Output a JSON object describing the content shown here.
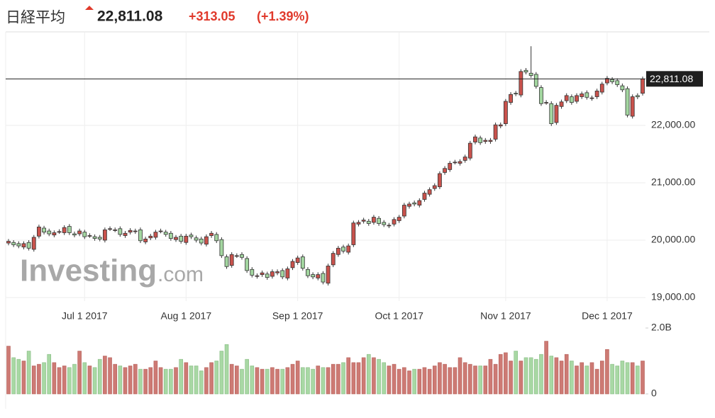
{
  "header": {
    "name": "日経平均",
    "price": "22,811.08",
    "change": "+313.05",
    "change_percent": "(+1.39%)"
  },
  "watermark": [
    "Investing",
    ".com"
  ],
  "chart_data": {
    "type": "candlestick",
    "up_color": "#c9524c",
    "down_color": "#a3d6a0",
    "x": [
      "2017-06-12",
      "2017-06-13",
      "2017-06-14",
      "2017-06-15",
      "2017-06-16",
      "2017-06-19",
      "2017-06-20",
      "2017-06-21",
      "2017-06-22",
      "2017-06-23",
      "2017-06-26",
      "2017-06-27",
      "2017-06-28",
      "2017-06-29",
      "2017-06-30",
      "2017-07-03",
      "2017-07-04",
      "2017-07-05",
      "2017-07-06",
      "2017-07-07",
      "2017-07-10",
      "2017-07-11",
      "2017-07-12",
      "2017-07-13",
      "2017-07-14",
      "2017-07-18",
      "2017-07-19",
      "2017-07-20",
      "2017-07-21",
      "2017-07-24",
      "2017-07-25",
      "2017-07-26",
      "2017-07-27",
      "2017-07-28",
      "2017-07-31",
      "2017-08-01",
      "2017-08-02",
      "2017-08-03",
      "2017-08-04",
      "2017-08-07",
      "2017-08-08",
      "2017-08-09",
      "2017-08-10",
      "2017-08-14",
      "2017-08-15",
      "2017-08-16",
      "2017-08-17",
      "2017-08-18",
      "2017-08-21",
      "2017-08-22",
      "2017-08-23",
      "2017-08-24",
      "2017-08-25",
      "2017-08-28",
      "2017-08-29",
      "2017-08-30",
      "2017-08-31",
      "2017-09-01",
      "2017-09-04",
      "2017-09-05",
      "2017-09-06",
      "2017-09-07",
      "2017-09-08",
      "2017-09-11",
      "2017-09-12",
      "2017-09-13",
      "2017-09-14",
      "2017-09-15",
      "2017-09-19",
      "2017-09-20",
      "2017-09-21",
      "2017-09-22",
      "2017-09-25",
      "2017-09-26",
      "2017-09-27",
      "2017-09-28",
      "2017-09-29",
      "2017-10-02",
      "2017-10-03",
      "2017-10-04",
      "2017-10-05",
      "2017-10-06",
      "2017-10-10",
      "2017-10-11",
      "2017-10-12",
      "2017-10-13",
      "2017-10-16",
      "2017-10-17",
      "2017-10-18",
      "2017-10-19",
      "2017-10-20",
      "2017-10-23",
      "2017-10-24",
      "2017-10-25",
      "2017-10-26",
      "2017-10-27",
      "2017-10-30",
      "2017-10-31",
      "2017-11-01",
      "2017-11-02",
      "2017-11-06",
      "2017-11-07",
      "2017-11-08",
      "2017-11-09",
      "2017-11-10",
      "2017-11-13",
      "2017-11-14",
      "2017-11-15",
      "2017-11-16",
      "2017-11-17",
      "2017-11-20",
      "2017-11-21",
      "2017-11-22",
      "2017-11-24",
      "2017-11-27",
      "2017-11-28",
      "2017-11-29",
      "2017-11-30",
      "2017-12-01",
      "2017-12-04",
      "2017-12-05",
      "2017-12-06",
      "2017-12-07",
      "2017-12-08",
      "2017-12-11",
      "2017-12-12"
    ],
    "open": [
      19950,
      19960,
      19940,
      19880,
      19960,
      19840,
      20070,
      20210,
      20160,
      20090,
      20150,
      20130,
      20240,
      20110,
      20110,
      20140,
      20080,
      20060,
      20050,
      20000,
      20200,
      20180,
      20200,
      20080,
      20140,
      20150,
      20180,
      19970,
      20040,
      20050,
      20160,
      20140,
      20120,
      20010,
      20070,
      19960,
      20090,
      20040,
      20020,
      19930,
      20080,
      20100,
      20010,
      19710,
      19560,
      19730,
      19750,
      19680,
      19490,
      19370,
      19400,
      19410,
      19370,
      19430,
      19470,
      19340,
      19520,
      19610,
      19710,
      19490,
      19400,
      19340,
      19420,
      19250,
      19570,
      19750,
      19880,
      19790,
      19920,
      20280,
      20330,
      20330,
      20310,
      20380,
      20310,
      20250,
      20280,
      20340,
      20420,
      20590,
      20650,
      20610,
      20710,
      20800,
      20900,
      20930,
      21180,
      21230,
      21360,
      21340,
      21390,
      21430,
      21710,
      21780,
      21720,
      21720,
      21760,
      21990,
      22030,
      22400,
      22560,
      22530,
      22960,
      22910,
      22890,
      22660,
      22400,
      22380,
      22050,
      22330,
      22430,
      22500,
      22420,
      22500,
      22570,
      22470,
      22500,
      22580,
      22740,
      22800,
      22780,
      22690,
      22640,
      22160,
      22520,
      22560
    ],
    "high": [
      20020,
      20000,
      19980,
      19980,
      20000,
      20090,
      20270,
      20250,
      20200,
      20170,
      20190,
      20260,
      20280,
      20150,
      20200,
      20180,
      20120,
      20100,
      20090,
      20220,
      20240,
      20220,
      20240,
      20160,
      20210,
      20200,
      20220,
      20060,
      20110,
      20180,
      20200,
      20180,
      20160,
      20090,
      20110,
      20110,
      20130,
      20080,
      20060,
      20100,
      20160,
      20140,
      20050,
      19750,
      19790,
      19770,
      19790,
      19720,
      19530,
      19420,
      19470,
      19450,
      19490,
      19490,
      19510,
      19540,
      19670,
      19730,
      19750,
      19530,
      19440,
      19440,
      19460,
      19590,
      19810,
      19900,
      19920,
      19940,
      20340,
      20350,
      20390,
      20370,
      20440,
      20420,
      20350,
      20300,
      20400,
      20440,
      20650,
      20670,
      20690,
      20730,
      20860,
      20920,
      20990,
      21200,
      21290,
      21380,
      21400,
      21410,
      21490,
      21730,
      21840,
      21820,
      21780,
      21780,
      22050,
      22050,
      22460,
      22580,
      22600,
      22980,
      23000,
      23380,
      22930,
      22700,
      22440,
      22420,
      22390,
      22450,
      22560,
      22540,
      22560,
      22590,
      22610,
      22520,
      22640,
      22760,
      22860,
      22840,
      22820,
      22730,
      22680,
      22540,
      22560,
      22850
    ],
    "low": [
      19910,
      19880,
      19860,
      19840,
      19820,
      19800,
      20030,
      20100,
      20070,
      20050,
      20110,
      20090,
      20090,
      20050,
      20070,
      20020,
      20040,
      19990,
      19980,
      19960,
      20160,
      20140,
      20060,
      20040,
      20100,
      20110,
      19950,
      19930,
      20000,
      20010,
      20120,
      20060,
      19990,
      19970,
      19940,
      19920,
      20020,
      19960,
      19910,
      19890,
      20040,
      19950,
      19690,
      19500,
      19520,
      19690,
      19660,
      19430,
      19350,
      19330,
      19360,
      19310,
      19330,
      19390,
      19320,
      19300,
      19480,
      19570,
      19470,
      19340,
      19320,
      19300,
      19230,
      19210,
      19530,
      19710,
      19770,
      19750,
      19880,
      20240,
      20290,
      20250,
      20270,
      20250,
      20230,
      20210,
      20240,
      20300,
      20380,
      20550,
      20590,
      20570,
      20670,
      20760,
      20860,
      20890,
      21140,
      21190,
      21320,
      21300,
      21350,
      21390,
      21670,
      21660,
      21680,
      21680,
      21720,
      21950,
      21990,
      22360,
      22510,
      22490,
      22890,
      22830,
      22640,
      22340,
      22360,
      21990,
      22010,
      22290,
      22390,
      22360,
      22380,
      22460,
      22450,
      22430,
      22460,
      22540,
      22700,
      22720,
      22670,
      22580,
      22140,
      22120,
      22458,
      22520
    ],
    "close": [
      19980,
      19920,
      19900,
      19940,
      19860,
      20050,
      20230,
      20140,
      20110,
      20130,
      20150,
      20220,
      20130,
      20090,
      20160,
      20060,
      20080,
      20030,
      20020,
      20180,
      20200,
      20180,
      20100,
      20120,
      20170,
      20160,
      19990,
      20020,
      20070,
      20140,
      20160,
      20100,
      20030,
      20050,
      19980,
      20070,
      20060,
      20000,
      19950,
      20060,
      20120,
      19990,
      19730,
      19540,
      19750,
      19730,
      19700,
      19470,
      19390,
      19380,
      19430,
      19350,
      19450,
      19450,
      19360,
      19500,
      19630,
      19690,
      19510,
      19380,
      19360,
      19400,
      19270,
      19550,
      19770,
      19860,
      19810,
      19900,
      20300,
      20310,
      20350,
      20290,
      20400,
      20290,
      20270,
      20260,
      20360,
      20400,
      20610,
      20630,
      20630,
      20690,
      20820,
      20880,
      20950,
      21160,
      21250,
      21340,
      21360,
      21370,
      21450,
      21690,
      21800,
      21700,
      21740,
      21740,
      22010,
      22010,
      22420,
      22540,
      22550,
      22940,
      22930,
      22870,
      22680,
      22380,
      22400,
      22030,
      22350,
      22410,
      22520,
      22400,
      22520,
      22550,
      22490,
      22480,
      22600,
      22720,
      22820,
      22760,
      22710,
      22620,
      22180,
      22500,
      22498.03,
      22811.08
    ],
    "ylim": [
      18938,
      23630
    ],
    "yticks": [
      {
        "value": 19000,
        "label": "19,000.00"
      },
      {
        "value": 20000,
        "label": "20,000.00"
      },
      {
        "value": 21000,
        "label": "21,000.00"
      },
      {
        "value": 22000,
        "label": "22,000.00"
      }
    ],
    "xticks": [
      {
        "value": "2017-07-01",
        "label": "Jul 1 2017"
      },
      {
        "value": "2017-08-01",
        "label": "Aug 1 2017"
      },
      {
        "value": "2017-09-01",
        "label": "Sep 1 2017"
      },
      {
        "value": "2017-10-01",
        "label": "Oct 1 2017"
      },
      {
        "value": "2017-11-01",
        "label": "Nov 1 2017"
      },
      {
        "value": "2017-12-01",
        "label": "Dec 1 2017"
      }
    ],
    "grid": true,
    "volume": {
      "up_color": "#cd7a74",
      "down_color": "#a8d8a4",
      "ylim": [
        0,
        2.0
      ],
      "yticks": [
        0,
        {
          "value": 2.0,
          "label": "2.0B"
        }
      ],
      "values": [
        1.45,
        1.1,
        1.05,
        1.0,
        1.3,
        0.85,
        0.9,
        0.95,
        1.2,
        0.95,
        0.8,
        0.85,
        0.8,
        0.9,
        1.3,
        0.95,
        0.85,
        0.8,
        1.05,
        1.15,
        1.1,
        0.9,
        0.85,
        0.8,
        0.85,
        0.9,
        0.75,
        0.75,
        0.8,
        1.0,
        0.8,
        0.75,
        0.75,
        0.8,
        1.05,
        0.95,
        0.85,
        0.85,
        0.7,
        0.8,
        0.95,
        1.0,
        1.3,
        1.5,
        0.9,
        0.85,
        0.75,
        1.05,
        0.85,
        0.8,
        0.75,
        0.75,
        0.8,
        0.75,
        0.75,
        0.8,
        0.9,
        1.0,
        0.8,
        0.8,
        0.75,
        0.85,
        0.8,
        0.8,
        0.9,
        0.9,
        0.95,
        1.1,
        0.95,
        0.95,
        1.1,
        1.2,
        1.1,
        1.05,
        0.95,
        0.85,
        0.9,
        0.75,
        0.8,
        0.7,
        0.75,
        0.75,
        0.8,
        0.75,
        0.85,
        0.95,
        0.9,
        0.8,
        0.8,
        1.1,
        0.95,
        0.9,
        0.85,
        0.85,
        0.85,
        1.05,
        0.9,
        1.2,
        1.25,
        1.0,
        1.3,
        1.0,
        1.1,
        1.1,
        1.05,
        1.2,
        1.6,
        1.15,
        1.1,
        1.0,
        1.2,
        1.0,
        0.85,
        0.95,
        0.85,
        0.95,
        0.75,
        1.0,
        1.35,
        0.9,
        0.85,
        1.0,
        0.95,
        0.95,
        0.85,
        1.0
      ]
    }
  }
}
